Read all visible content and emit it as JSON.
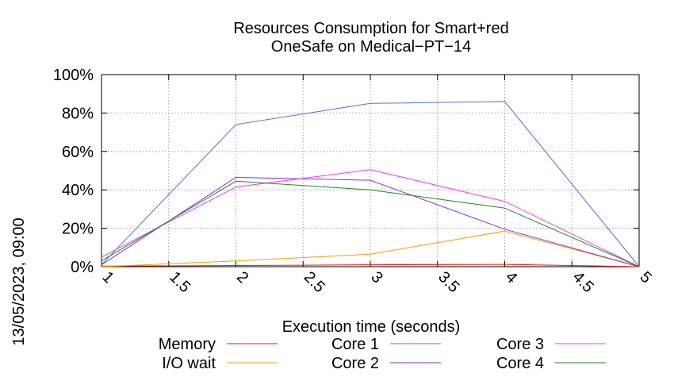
{
  "chart_data": {
    "type": "line",
    "title": [
      "Resources Consumption for Smart+red",
      "OneSafe on Medical−PT−14"
    ],
    "xlabel": "Execution time (seconds)",
    "ylabel": "",
    "side_label": "13/05/2023, 09:00",
    "xlim": [
      1,
      5
    ],
    "ylim": [
      0,
      100
    ],
    "x_ticks": [
      1,
      1.5,
      2,
      2.5,
      3,
      3.5,
      4,
      4.5,
      5
    ],
    "x_tick_labels": [
      "1",
      "1.5",
      "2",
      "2.5",
      "3",
      "3.5",
      "4",
      "4.5",
      "5"
    ],
    "y_ticks": [
      0,
      20,
      40,
      60,
      80,
      100
    ],
    "y_tick_labels": [
      "0%",
      "20%",
      "40%",
      "60%",
      "80%",
      "100%"
    ],
    "grid": true,
    "legend_position": "bottom",
    "x": [
      1,
      2,
      3,
      4,
      5
    ],
    "series": [
      {
        "name": "Memory",
        "color": "#e8190e",
        "values": [
          0.3,
          0.6,
          1.0,
          1.2,
          0
        ]
      },
      {
        "name": "I/O wait",
        "color": "#f5a100",
        "values": [
          0,
          3,
          6.5,
          18.5,
          0
        ]
      },
      {
        "name": "Core 1",
        "color": "#4a74d9",
        "values": [
          1,
          74,
          85,
          86,
          0
        ]
      },
      {
        "name": "Core 2",
        "color": "#8a2be2",
        "values": [
          1,
          46.5,
          45,
          19.5,
          0
        ]
      },
      {
        "name": "Core 3",
        "color": "#ff33ff",
        "values": [
          5,
          41.5,
          50.5,
          34,
          0
        ]
      },
      {
        "name": "Core 4",
        "color": "#1e8a1e",
        "values": [
          3,
          44.5,
          40,
          30.5,
          0
        ]
      }
    ]
  }
}
